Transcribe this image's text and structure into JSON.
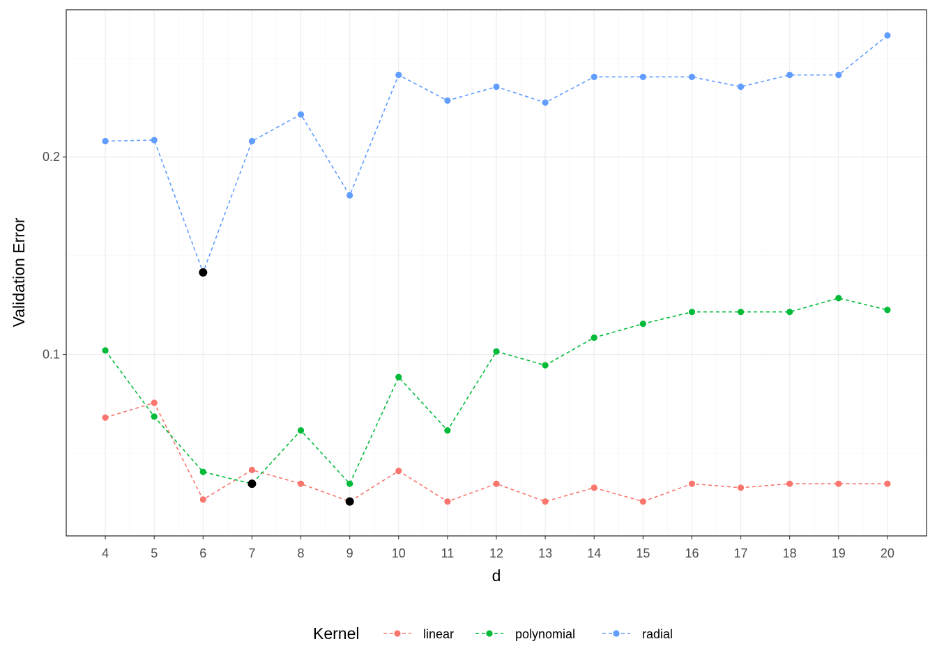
{
  "chart_data": {
    "type": "line",
    "xlabel": "d",
    "ylabel": "Validation Error",
    "x": [
      4,
      5,
      6,
      7,
      8,
      9,
      10,
      11,
      12,
      13,
      14,
      15,
      16,
      17,
      18,
      19,
      20
    ],
    "x_ticks": [
      "4",
      "5",
      "6",
      "7",
      "8",
      "9",
      "10",
      "11",
      "12",
      "13",
      "14",
      "15",
      "16",
      "17",
      "18",
      "19",
      "20"
    ],
    "y_ticks": [
      {
        "value": 0.1,
        "label": "0.1"
      },
      {
        "value": 0.2,
        "label": "0.2"
      }
    ],
    "xlim": [
      3.2,
      20.8
    ],
    "ylim": [
      0.0081,
      0.2745
    ],
    "grid": true,
    "legend": {
      "title": "Kernel",
      "position": "bottom"
    },
    "line_style": "dashed",
    "series": [
      {
        "name": "linear",
        "color": "#F8766D",
        "values": [
          0.068,
          0.0755,
          0.0265,
          0.0415,
          0.0345,
          0.0255,
          0.041,
          0.0255,
          0.0345,
          0.0255,
          0.0325,
          0.0255,
          0.0345,
          0.0325,
          0.0345,
          0.0345,
          0.0345
        ]
      },
      {
        "name": "polynomial",
        "color": "#00BA38",
        "values": [
          0.102,
          0.0685,
          0.0405,
          0.0345,
          0.0615,
          0.0345,
          0.0885,
          0.0615,
          0.1015,
          0.0945,
          0.1085,
          0.1155,
          0.1215,
          0.1215,
          0.1215,
          0.1285,
          0.1225
        ]
      },
      {
        "name": "radial",
        "color": "#619CFF",
        "values": [
          0.208,
          0.2085,
          0.1415,
          0.208,
          0.2215,
          0.1805,
          0.2415,
          0.2285,
          0.2355,
          0.2275,
          0.2405,
          0.2405,
          0.2405,
          0.2355,
          0.2415,
          0.2415,
          0.2615
        ]
      }
    ],
    "highlighted_points": [
      {
        "x": 6,
        "y": 0.1415,
        "color": "#000000"
      },
      {
        "x": 7,
        "y": 0.0345,
        "color": "#000000"
      },
      {
        "x": 9,
        "y": 0.0255,
        "color": "#000000"
      }
    ]
  }
}
